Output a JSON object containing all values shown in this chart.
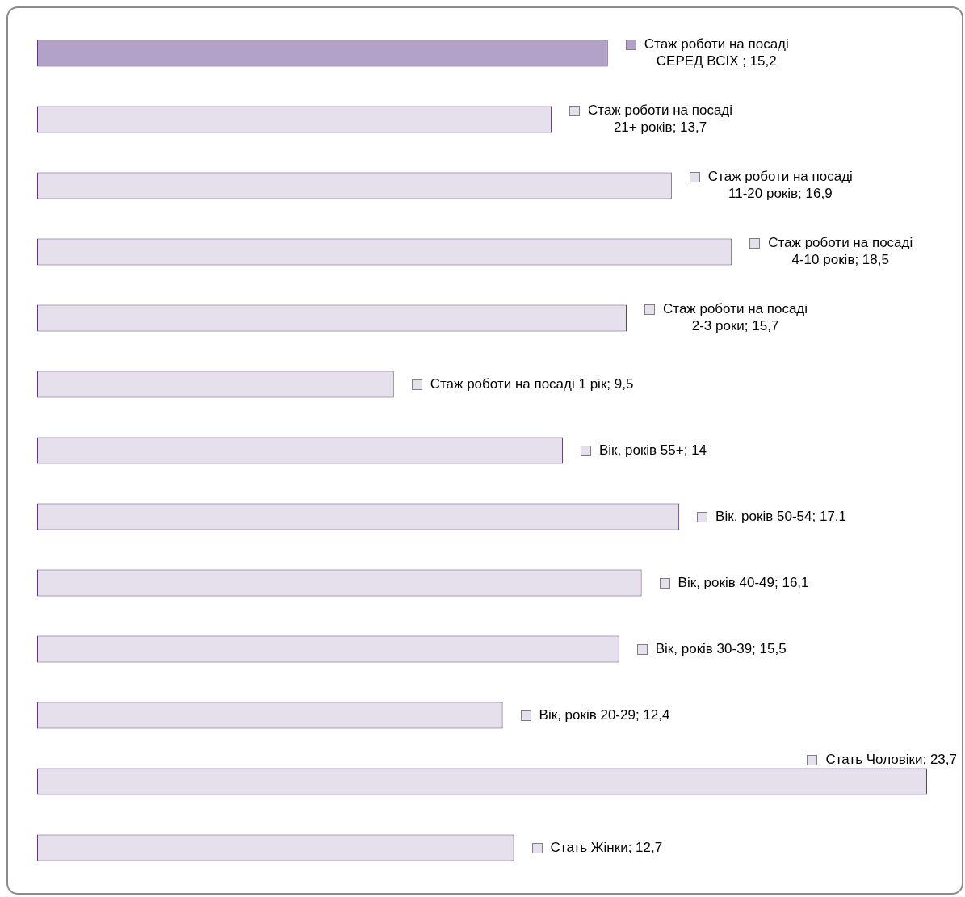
{
  "chart_data": {
    "type": "bar",
    "orientation": "horizontal",
    "tick_labels": false,
    "categories": [
      null,
      null,
      null,
      null,
      null,
      null,
      null,
      null,
      null,
      null,
      null,
      null,
      null
    ],
    "values": [
      15.2,
      13.7,
      16.9,
      18.5,
      15.7,
      9.5,
      14,
      17.1,
      16.1,
      15.5,
      12.4,
      23.7,
      12.7
    ],
    "colors": [
      "#b3a2c7",
      "#e6e0ec",
      "#e6e0ec",
      "#e6e0ec",
      "#e6e0ec",
      "#e6e0ec",
      "#e6e0ec",
      "#e6e0ec",
      "#e6e0ec",
      "#e6e0ec",
      "#e6e0ec",
      "#e6e0ec",
      "#e6e0ec"
    ],
    "value_labels": [
      "Стаж роботи на посаді СЕРЕД ВСІХ ; 15,2",
      "Стаж роботи на посаді 21+ років; 13,7",
      "Стаж роботи на посаді 11-20 років; 16,9",
      "Стаж роботи на посаді 4-10 років; 18,5",
      "Стаж роботи на посаді 2-3 роки; 15,7",
      "Стаж роботи на посаді 1 рік; 9,5",
      "Вік, років 55+; 14",
      "Вік, років 50-54; 17,1",
      "Вік, років 40-49; 16,1",
      "Вік, років 30-39; 15,5",
      "Вік, років 20-29; 12,4",
      "Стать Чоловіки; 23,7",
      "Стать Жінки; 12,7"
    ]
  }
}
